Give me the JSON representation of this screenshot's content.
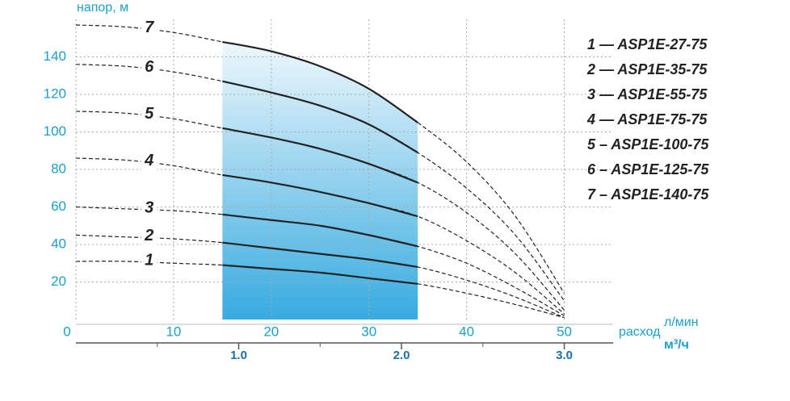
{
  "chart_data": {
    "type": "line",
    "y_label": "напор, м",
    "x_label": "расход",
    "x_unit": "л/мин",
    "x2_unit": "м³/ч",
    "x": [
      0,
      5,
      10,
      15,
      20,
      25,
      30,
      35,
      40,
      45,
      50
    ],
    "series": [
      {
        "name": "1 — ASP1E-27-75",
        "label": "1",
        "color": "#222222",
        "values": [
          31,
          31,
          30,
          29,
          27,
          25,
          22,
          19,
          14,
          8,
          1
        ]
      },
      {
        "name": "2 — ASP1E-35-75",
        "label": "2",
        "color": "#222222",
        "values": [
          45,
          44,
          43,
          41,
          38,
          35,
          32,
          28,
          21,
          12,
          1
        ]
      },
      {
        "name": "3 — ASP1E-55-75",
        "label": "3",
        "color": "#222222",
        "values": [
          60,
          59,
          58,
          56,
          53,
          50,
          45,
          39,
          30,
          17,
          2
        ]
      },
      {
        "name": "4 — ASP1E-75-75",
        "label": "4",
        "color": "#222222",
        "values": [
          86,
          85,
          82,
          77,
          73,
          68,
          62,
          55,
          42,
          25,
          3
        ]
      },
      {
        "name": "5 – ASP1E-100-75",
        "label": "5",
        "color": "#222222",
        "values": [
          111,
          110,
          107,
          102,
          97,
          91,
          83,
          73,
          57,
          35,
          5
        ]
      },
      {
        "name": "6 – ASP1E-125-75",
        "label": "6",
        "color": "#222222",
        "values": [
          136,
          135,
          132,
          127,
          121,
          114,
          104,
          89,
          70,
          45,
          10
        ]
      },
      {
        "name": "7 – ASP1E-140-75",
        "label": "7",
        "color": "#222222",
        "values": [
          157,
          156,
          153,
          148,
          143,
          135,
          123,
          105,
          84,
          55,
          14
        ]
      }
    ],
    "working_range": [
      15,
      35
    ],
    "xlim": [
      0,
      55
    ],
    "xticks": [
      0,
      10,
      20,
      30,
      40,
      50
    ],
    "ylim": [
      0,
      160
    ],
    "yticks": [
      20,
      40,
      60,
      80,
      100,
      120,
      140
    ],
    "x2lim": [
      0,
      3.3
    ],
    "x2ticks": [
      {
        "value": 1,
        "label": "1.0"
      },
      {
        "value": 2,
        "label": "2.0"
      },
      {
        "value": 3,
        "label": "3.0"
      }
    ],
    "x2minor": [
      0.5,
      1.5,
      2.5
    ],
    "grid": true
  }
}
